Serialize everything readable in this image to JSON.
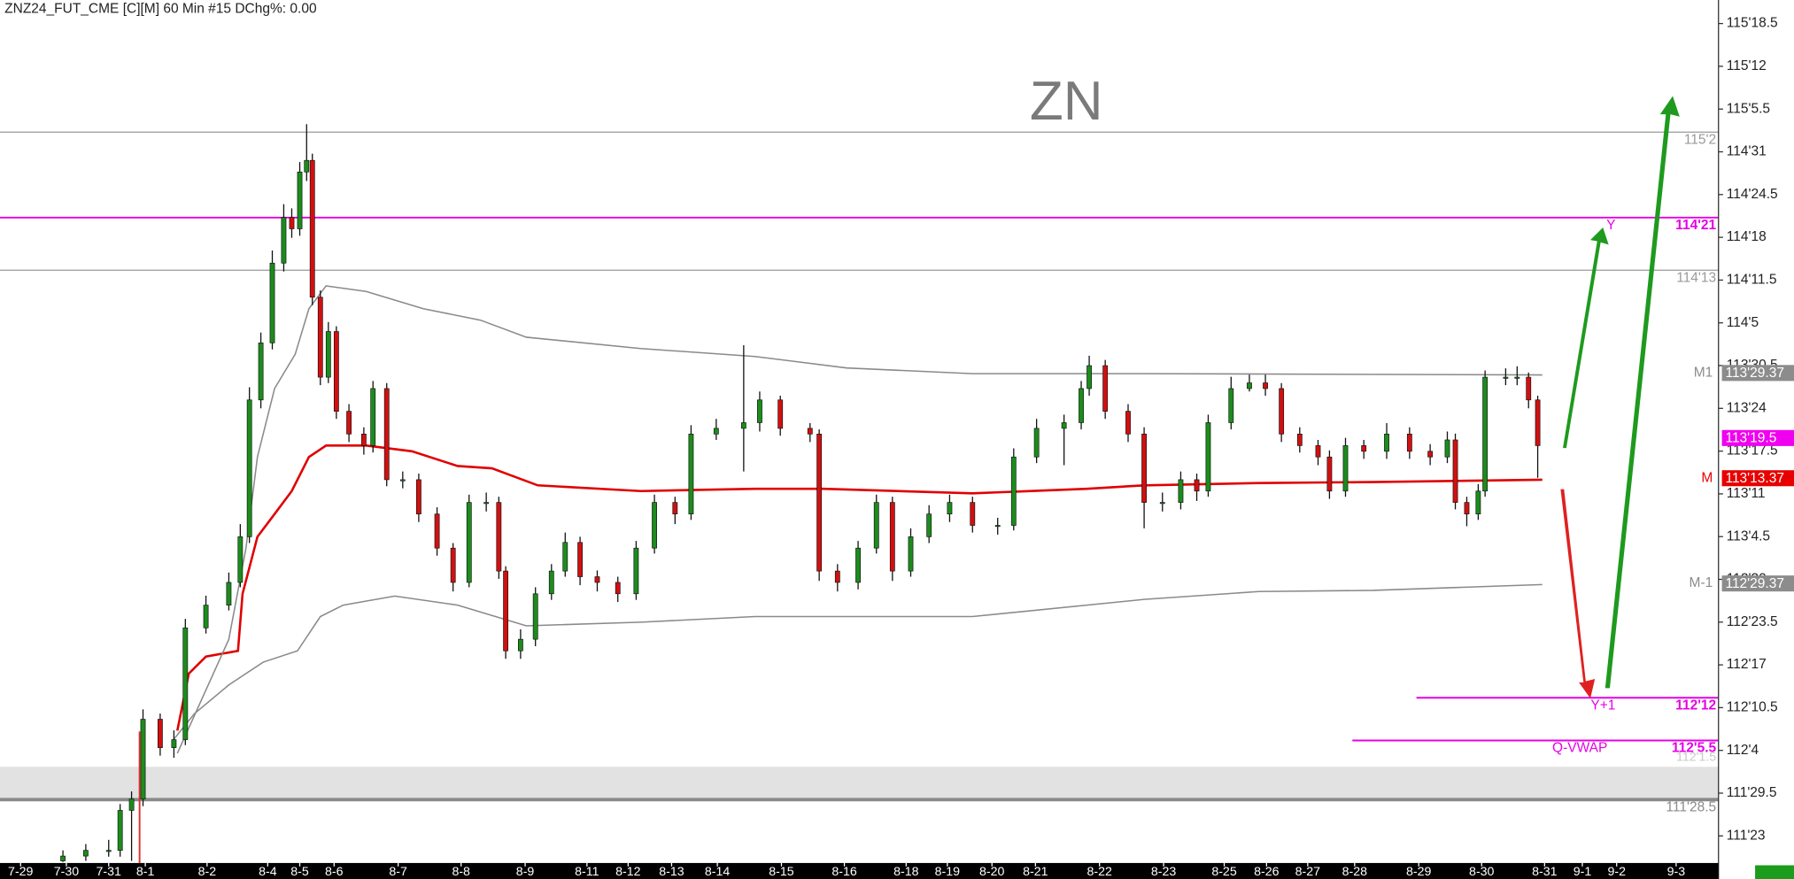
{
  "chart_data": {
    "type": "candlestick",
    "header": "ZNZ24_FUT_CME [C][M]  60 Min  #15 DChg%: 0.00",
    "title": "ZN",
    "xlim": [
      0,
      1502
    ],
    "ylim": [
      111.59,
      115.69
    ],
    "up_color": "#1c8c1c",
    "down_color": "#d01010",
    "yticks": [
      {
        "value": 115.578125,
        "label": "115'18.5"
      },
      {
        "value": 115.375,
        "label": "115'12"
      },
      {
        "value": 115.171875,
        "label": "115'5.5"
      },
      {
        "value": 114.96875,
        "label": "114'31"
      },
      {
        "value": 114.765625,
        "label": "114'24.5"
      },
      {
        "value": 114.5625,
        "label": "114'18"
      },
      {
        "value": 114.359375,
        "label": "114'11.5"
      },
      {
        "value": 114.15625,
        "label": "114'5"
      },
      {
        "value": 113.953125,
        "label": "113'30.5"
      },
      {
        "value": 113.75,
        "label": "113'24"
      },
      {
        "value": 113.546875,
        "label": "113'17.5"
      },
      {
        "value": 113.34375,
        "label": "113'11"
      },
      {
        "value": 113.140625,
        "label": "113'4.5"
      },
      {
        "value": 112.9375,
        "label": "112'30"
      },
      {
        "value": 112.734375,
        "label": "112'23.5"
      },
      {
        "value": 112.53125,
        "label": "112'17"
      },
      {
        "value": 112.328125,
        "label": "112'10.5"
      },
      {
        "value": 112.125,
        "label": "112'4"
      },
      {
        "value": 111.921875,
        "label": "111'29.5"
      },
      {
        "value": 111.71875,
        "label": "111'23"
      }
    ],
    "xticks": [
      {
        "value": 18,
        "label": "7-29"
      },
      {
        "value": 58,
        "label": "7-30"
      },
      {
        "value": 95,
        "label": "7-31"
      },
      {
        "value": 127,
        "label": "8-1"
      },
      {
        "value": 181,
        "label": "8-2"
      },
      {
        "value": 234,
        "label": "8-4"
      },
      {
        "value": 262,
        "label": "8-5"
      },
      {
        "value": 292,
        "label": "8-6"
      },
      {
        "value": 348,
        "label": "8-7"
      },
      {
        "value": 403,
        "label": "8-8"
      },
      {
        "value": 459,
        "label": "8-9"
      },
      {
        "value": 513,
        "label": "8-11"
      },
      {
        "value": 549,
        "label": "8-12"
      },
      {
        "value": 587,
        "label": "8-13"
      },
      {
        "value": 627,
        "label": "8-14"
      },
      {
        "value": 683,
        "label": "8-15"
      },
      {
        "value": 738,
        "label": "8-16"
      },
      {
        "value": 792,
        "label": "8-18"
      },
      {
        "value": 828,
        "label": "8-19"
      },
      {
        "value": 867,
        "label": "8-20"
      },
      {
        "value": 905,
        "label": "8-21"
      },
      {
        "value": 961,
        "label": "8-22"
      },
      {
        "value": 1017,
        "label": "8-23"
      },
      {
        "value": 1070,
        "label": "8-25"
      },
      {
        "value": 1107,
        "label": "8-26"
      },
      {
        "value": 1143,
        "label": "8-27"
      },
      {
        "value": 1184,
        "label": "8-28"
      },
      {
        "value": 1240,
        "label": "8-29"
      },
      {
        "value": 1295,
        "label": "8-30"
      },
      {
        "value": 1350,
        "label": "8-31"
      },
      {
        "value": 1383,
        "label": "9-1"
      },
      {
        "value": 1413,
        "label": "9-2"
      },
      {
        "value": 1465,
        "label": "9-3"
      }
    ],
    "band": {
      "from": 111.891,
      "to": 112.047,
      "label": "112'1.5",
      "color": "#e2e2e2"
    },
    "levels": [
      {
        "value": 115.0625,
        "value_label": "115'2",
        "color": "#9a9a9a",
        "style": "line"
      },
      {
        "name": "Y",
        "value": 114.65625,
        "value_label": "114'21",
        "color": "#e600e6",
        "style": "line"
      },
      {
        "value": 114.40625,
        "value_label": "114'13",
        "color": "#9a9a9a",
        "style": "line"
      },
      {
        "name": "Y+1",
        "value": 112.375,
        "value_label": "112'12",
        "color": "#e600e6",
        "style": "line",
        "x_start": 1238
      },
      {
        "name": "Q-VWAP",
        "value": 112.172,
        "value_label": "112'5.5",
        "color": "#e600e6",
        "style": "line",
        "x_start": 1182
      },
      {
        "value": 111.891,
        "value_label": "111'28.5",
        "color": "#8a8a8a",
        "style": "thick"
      },
      {
        "name": "M1",
        "value": 113.918,
        "value_label": "113'29.37",
        "color": "#8c8c8c",
        "style": "box"
      },
      {
        "value": 113.609,
        "value_label": "113'19.5",
        "color": "#f000f0",
        "style": "box"
      },
      {
        "name": "M",
        "value": 113.418,
        "value_label": "113'13.37",
        "color": "#e80000",
        "style": "box"
      },
      {
        "name": "M-1",
        "value": 112.918,
        "value_label": "112'29.37",
        "color": "#8c8c8c",
        "style": "box"
      }
    ],
    "lines": [
      {
        "color": "#e00000",
        "x": [
          155,
          165,
          180,
          208,
          212,
          225,
          240,
          255,
          270,
          285,
          320,
          360,
          400,
          430,
          470,
          560,
          660,
          720,
          850,
          950,
          1000,
          1100,
          1200,
          1348
        ],
        "values": [
          112.219,
          112.49,
          112.571,
          112.598,
          112.869,
          113.14,
          113.248,
          113.357,
          113.519,
          113.573,
          113.573,
          113.546,
          113.476,
          113.465,
          113.384,
          113.357,
          113.368,
          113.368,
          113.346,
          113.368,
          113.384,
          113.395,
          113.4,
          113.411
        ]
      },
      {
        "color": "#8a8a8a",
        "x": [
          155,
          200,
          215,
          225,
          240,
          258,
          270,
          285,
          320,
          370,
          420,
          460,
          560,
          660,
          740,
          850,
          1000,
          1348
        ],
        "values": [
          112.111,
          112.653,
          113.086,
          113.519,
          113.844,
          114.007,
          114.223,
          114.332,
          114.305,
          114.223,
          114.169,
          114.088,
          114.034,
          113.996,
          113.942,
          113.915,
          113.915,
          113.909
        ]
      },
      {
        "color": "#8a8a8a",
        "x": [
          150,
          170,
          200,
          230,
          260,
          280,
          300,
          345,
          400,
          460,
          560,
          660,
          740,
          850,
          1000,
          1100,
          1200,
          1348
        ],
        "values": [
          112.165,
          112.3,
          112.436,
          112.544,
          112.598,
          112.761,
          112.815,
          112.858,
          112.815,
          112.717,
          112.734,
          112.761,
          112.761,
          112.761,
          112.842,
          112.88,
          112.885,
          112.913
        ]
      }
    ],
    "candles": [
      {
        "x": 55,
        "o": 111.6,
        "h": 111.65,
        "l": 111.595,
        "c": 111.623
      },
      {
        "x": 75,
        "o": 111.623,
        "h": 111.68,
        "l": 111.6,
        "c": 111.65
      },
      {
        "x": 95,
        "o": 111.65,
        "h": 111.7,
        "l": 111.62,
        "c": 111.65
      },
      {
        "x": 105,
        "o": 111.65,
        "h": 111.87,
        "l": 111.62,
        "c": 111.84
      },
      {
        "x": 115,
        "o": 111.84,
        "h": 111.93,
        "l": 111.6,
        "c": 111.894
      },
      {
        "x": 125,
        "o": 111.894,
        "h": 112.32,
        "l": 111.86,
        "c": 112.273
      },
      {
        "x": 140,
        "o": 112.273,
        "h": 112.3,
        "l": 112.1,
        "c": 112.138
      },
      {
        "x": 152,
        "o": 112.138,
        "h": 112.22,
        "l": 112.09,
        "c": 112.176
      },
      {
        "x": 162,
        "o": 112.176,
        "h": 112.75,
        "l": 112.15,
        "c": 112.707
      },
      {
        "x": 180,
        "o": 112.707,
        "h": 112.86,
        "l": 112.68,
        "c": 112.815
      },
      {
        "x": 200,
        "o": 112.815,
        "h": 112.97,
        "l": 112.79,
        "c": 112.923
      },
      {
        "x": 210,
        "o": 112.923,
        "h": 113.2,
        "l": 112.9,
        "c": 113.14
      },
      {
        "x": 218,
        "o": 113.14,
        "h": 113.85,
        "l": 113.11,
        "c": 113.79
      },
      {
        "x": 228,
        "o": 113.79,
        "h": 114.11,
        "l": 113.75,
        "c": 114.061
      },
      {
        "x": 238,
        "o": 114.061,
        "h": 114.5,
        "l": 114.03,
        "c": 114.44
      },
      {
        "x": 248,
        "o": 114.44,
        "h": 114.72,
        "l": 114.4,
        "c": 114.657
      },
      {
        "x": 255,
        "o": 114.657,
        "h": 114.7,
        "l": 114.56,
        "c": 114.603
      },
      {
        "x": 262,
        "o": 114.603,
        "h": 114.92,
        "l": 114.57,
        "c": 114.873
      },
      {
        "x": 268,
        "o": 114.873,
        "h": 115.1,
        "l": 114.83,
        "c": 114.928
      },
      {
        "x": 273,
        "o": 114.928,
        "h": 114.96,
        "l": 114.24,
        "c": 114.278
      },
      {
        "x": 280,
        "o": 114.278,
        "h": 114.31,
        "l": 113.86,
        "c": 113.898
      },
      {
        "x": 287,
        "o": 113.898,
        "h": 114.16,
        "l": 113.87,
        "c": 114.115
      },
      {
        "x": 294,
        "o": 114.115,
        "h": 114.14,
        "l": 113.7,
        "c": 113.736
      },
      {
        "x": 305,
        "o": 113.736,
        "h": 113.77,
        "l": 113.59,
        "c": 113.628
      },
      {
        "x": 318,
        "o": 113.628,
        "h": 113.66,
        "l": 113.53,
        "c": 113.573
      },
      {
        "x": 326,
        "o": 113.573,
        "h": 113.88,
        "l": 113.54,
        "c": 113.844
      },
      {
        "x": 338,
        "o": 113.844,
        "h": 113.87,
        "l": 113.38,
        "c": 113.411
      },
      {
        "x": 352,
        "o": 113.411,
        "h": 113.45,
        "l": 113.37,
        "c": 113.411
      },
      {
        "x": 366,
        "o": 113.411,
        "h": 113.44,
        "l": 113.21,
        "c": 113.248
      },
      {
        "x": 382,
        "o": 113.248,
        "h": 113.28,
        "l": 113.05,
        "c": 113.086
      },
      {
        "x": 396,
        "o": 113.086,
        "h": 113.11,
        "l": 112.88,
        "c": 112.923
      },
      {
        "x": 410,
        "o": 112.923,
        "h": 113.34,
        "l": 112.9,
        "c": 113.303
      },
      {
        "x": 425,
        "o": 113.303,
        "h": 113.35,
        "l": 113.26,
        "c": 113.303
      },
      {
        "x": 436,
        "o": 113.303,
        "h": 113.33,
        "l": 112.94,
        "c": 112.977
      },
      {
        "x": 442,
        "o": 112.977,
        "h": 113.0,
        "l": 112.56,
        "c": 112.598
      },
      {
        "x": 455,
        "o": 112.598,
        "h": 112.7,
        "l": 112.56,
        "c": 112.653
      },
      {
        "x": 468,
        "o": 112.653,
        "h": 112.9,
        "l": 112.62,
        "c": 112.869
      },
      {
        "x": 482,
        "o": 112.869,
        "h": 113.01,
        "l": 112.84,
        "c": 112.977
      },
      {
        "x": 494,
        "o": 112.977,
        "h": 113.16,
        "l": 112.95,
        "c": 113.113
      },
      {
        "x": 507,
        "o": 113.113,
        "h": 113.14,
        "l": 112.91,
        "c": 112.95
      },
      {
        "x": 522,
        "o": 112.95,
        "h": 112.98,
        "l": 112.88,
        "c": 112.923
      },
      {
        "x": 540,
        "o": 112.923,
        "h": 112.95,
        "l": 112.83,
        "c": 112.869
      },
      {
        "x": 556,
        "o": 112.869,
        "h": 113.12,
        "l": 112.84,
        "c": 113.086
      },
      {
        "x": 572,
        "o": 113.086,
        "h": 113.34,
        "l": 113.06,
        "c": 113.303
      },
      {
        "x": 590,
        "o": 113.303,
        "h": 113.33,
        "l": 113.2,
        "c": 113.248
      },
      {
        "x": 604,
        "o": 113.248,
        "h": 113.67,
        "l": 113.22,
        "c": 113.628
      },
      {
        "x": 626,
        "o": 113.628,
        "h": 113.7,
        "l": 113.6,
        "c": 113.655
      },
      {
        "x": 650,
        "o": 113.655,
        "h": 114.05,
        "l": 113.45,
        "c": 113.682
      },
      {
        "x": 664,
        "o": 113.682,
        "h": 113.83,
        "l": 113.64,
        "c": 113.79
      },
      {
        "x": 682,
        "o": 113.79,
        "h": 113.81,
        "l": 113.62,
        "c": 113.655
      },
      {
        "x": 708,
        "o": 113.655,
        "h": 113.68,
        "l": 113.59,
        "c": 113.628
      },
      {
        "x": 716,
        "o": 113.628,
        "h": 113.65,
        "l": 112.93,
        "c": 112.977
      },
      {
        "x": 732,
        "o": 112.977,
        "h": 113.01,
        "l": 112.88,
        "c": 112.923
      },
      {
        "x": 750,
        "o": 112.923,
        "h": 113.12,
        "l": 112.89,
        "c": 113.086
      },
      {
        "x": 766,
        "o": 113.086,
        "h": 113.34,
        "l": 113.06,
        "c": 113.303
      },
      {
        "x": 780,
        "o": 113.303,
        "h": 113.33,
        "l": 112.93,
        "c": 112.977
      },
      {
        "x": 796,
        "o": 112.977,
        "h": 113.18,
        "l": 112.95,
        "c": 113.14
      },
      {
        "x": 812,
        "o": 113.14,
        "h": 113.29,
        "l": 113.11,
        "c": 113.248
      },
      {
        "x": 830,
        "o": 113.248,
        "h": 113.34,
        "l": 113.21,
        "c": 113.303
      },
      {
        "x": 850,
        "o": 113.303,
        "h": 113.33,
        "l": 113.16,
        "c": 113.194
      },
      {
        "x": 872,
        "o": 113.194,
        "h": 113.23,
        "l": 113.15,
        "c": 113.194
      },
      {
        "x": 886,
        "o": 113.194,
        "h": 113.56,
        "l": 113.17,
        "c": 113.519
      },
      {
        "x": 906,
        "o": 113.519,
        "h": 113.7,
        "l": 113.49,
        "c": 113.655
      },
      {
        "x": 930,
        "o": 113.655,
        "h": 113.72,
        "l": 113.48,
        "c": 113.682
      },
      {
        "x": 945,
        "o": 113.682,
        "h": 113.88,
        "l": 113.65,
        "c": 113.844
      },
      {
        "x": 952,
        "o": 113.844,
        "h": 114.0,
        "l": 113.81,
        "c": 113.953
      },
      {
        "x": 966,
        "o": 113.953,
        "h": 113.98,
        "l": 113.7,
        "c": 113.736
      },
      {
        "x": 986,
        "o": 113.736,
        "h": 113.77,
        "l": 113.59,
        "c": 113.628
      },
      {
        "x": 1000,
        "o": 113.628,
        "h": 113.66,
        "l": 113.18,
        "c": 113.303
      },
      {
        "x": 1016,
        "o": 113.303,
        "h": 113.35,
        "l": 113.26,
        "c": 113.303
      },
      {
        "x": 1032,
        "o": 113.303,
        "h": 113.45,
        "l": 113.27,
        "c": 113.411
      },
      {
        "x": 1046,
        "o": 113.411,
        "h": 113.44,
        "l": 113.31,
        "c": 113.357
      },
      {
        "x": 1056,
        "o": 113.357,
        "h": 113.72,
        "l": 113.33,
        "c": 113.682
      },
      {
        "x": 1076,
        "o": 113.682,
        "h": 113.9,
        "l": 113.65,
        "c": 113.844
      },
      {
        "x": 1092,
        "o": 113.844,
        "h": 113.91,
        "l": 113.83,
        "c": 113.871
      },
      {
        "x": 1106,
        "o": 113.871,
        "h": 113.91,
        "l": 113.81,
        "c": 113.844
      },
      {
        "x": 1120,
        "o": 113.844,
        "h": 113.87,
        "l": 113.59,
        "c": 113.628
      },
      {
        "x": 1136,
        "o": 113.628,
        "h": 113.66,
        "l": 113.54,
        "c": 113.573
      },
      {
        "x": 1152,
        "o": 113.573,
        "h": 113.6,
        "l": 113.48,
        "c": 113.519
      },
      {
        "x": 1162,
        "o": 113.519,
        "h": 113.55,
        "l": 113.32,
        "c": 113.357
      },
      {
        "x": 1176,
        "o": 113.357,
        "h": 113.61,
        "l": 113.33,
        "c": 113.573
      },
      {
        "x": 1192,
        "o": 113.573,
        "h": 113.6,
        "l": 113.51,
        "c": 113.546
      },
      {
        "x": 1212,
        "o": 113.546,
        "h": 113.68,
        "l": 113.51,
        "c": 113.628
      },
      {
        "x": 1232,
        "o": 113.628,
        "h": 113.66,
        "l": 113.51,
        "c": 113.546
      },
      {
        "x": 1250,
        "o": 113.546,
        "h": 113.58,
        "l": 113.48,
        "c": 113.519
      },
      {
        "x": 1265,
        "o": 113.519,
        "h": 113.64,
        "l": 113.49,
        "c": 113.6
      },
      {
        "x": 1272,
        "o": 113.6,
        "h": 113.63,
        "l": 113.27,
        "c": 113.303
      },
      {
        "x": 1282,
        "o": 113.303,
        "h": 113.33,
        "l": 113.19,
        "c": 113.248
      },
      {
        "x": 1292,
        "o": 113.248,
        "h": 113.39,
        "l": 113.22,
        "c": 113.357
      },
      {
        "x": 1298,
        "o": 113.357,
        "h": 113.93,
        "l": 113.33,
        "c": 113.898
      },
      {
        "x": 1316,
        "o": 113.898,
        "h": 113.94,
        "l": 113.86,
        "c": 113.898
      },
      {
        "x": 1326,
        "o": 113.898,
        "h": 113.95,
        "l": 113.86,
        "c": 113.898
      },
      {
        "x": 1336,
        "o": 113.898,
        "h": 113.92,
        "l": 113.75,
        "c": 113.79
      },
      {
        "x": 1344,
        "o": 113.79,
        "h": 113.81,
        "l": 113.42,
        "c": 113.573
      }
    ]
  }
}
